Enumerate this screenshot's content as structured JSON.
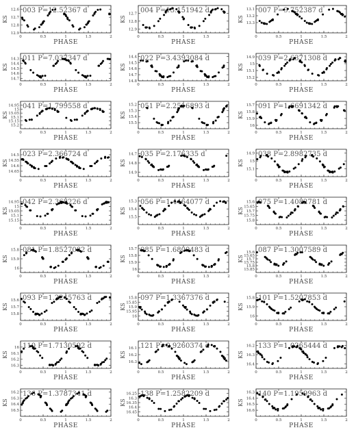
{
  "figure": {
    "background": "#ffffff",
    "point_color": "#000000"
  },
  "chart_data": [
    {
      "type": "scatter",
      "title": "003 P=12.52367 d",
      "xlabel": "PHASE",
      "ylabel": "K_S",
      "xlim": [
        0,
        2
      ],
      "ylim": [
        12.9,
        12.55
      ],
      "yticks": [
        12.6,
        12.7,
        12.8,
        12.9
      ],
      "xticks": [
        0,
        0.5,
        1,
        1.5,
        2
      ],
      "ymin": 12.58,
      "ymax": 12.86,
      "phase_offset": 0.3
    },
    {
      "type": "scatter",
      "title": "004 P=13.151942 d",
      "xlabel": "PHASE",
      "ylabel": "K_S",
      "xlim": [
        0,
        2
      ],
      "ylim": [
        12.95,
        12.6
      ],
      "yticks": [
        12.7,
        12.8,
        12.9
      ],
      "xticks": [
        0,
        0.5,
        1,
        1.5,
        2
      ],
      "ymin": 12.63,
      "ymax": 12.9,
      "phase_offset": 0.25
    },
    {
      "type": "scatter",
      "title": "007 P=9.752387 d",
      "xlabel": "PHASE",
      "ylabel": "K_S",
      "xlim": [
        0,
        2
      ],
      "ylim": [
        13.45,
        13.05
      ],
      "yticks": [
        13.1,
        13.2,
        13.3
      ],
      "xticks": [
        0,
        0.5,
        1,
        1.5,
        2
      ],
      "ymin": 13.1,
      "ymax": 13.32,
      "phase_offset": 0.2
    },
    {
      "type": "scatter",
      "title": "011 P=7.037347 d",
      "xlabel": "PHASE",
      "ylabel": "K_S",
      "xlim": [
        0,
        2
      ],
      "ylim": [
        14.75,
        14.2
      ],
      "yticks": [
        14.3,
        14.4,
        14.5,
        14.6,
        14.7
      ],
      "xticks": [
        0,
        0.5,
        1,
        1.5,
        2
      ],
      "ymin": 14.3,
      "ymax": 14.68,
      "phase_offset": 0.45
    },
    {
      "type": "scatter",
      "title": "022 P=3.4393084 d",
      "xlabel": "PHASE",
      "ylabel": "K_S",
      "xlim": [
        0,
        2
      ],
      "ylim": [
        14.8,
        14.35
      ],
      "yticks": [
        14.4,
        14.5,
        14.6,
        14.7,
        14.8
      ],
      "xticks": [
        0,
        0.5,
        1,
        1.5,
        2
      ],
      "ymin": 14.45,
      "ymax": 14.75,
      "phase_offset": 0.6
    },
    {
      "type": "scatter",
      "title": "039 P=2.6371308 d",
      "xlabel": "PHASE",
      "ylabel": "K_S",
      "xlim": [
        0,
        2
      ],
      "ylim": [
        15.25,
        14.85
      ],
      "yticks": [
        14.9,
        15,
        15.1,
        15.2
      ],
      "xticks": [
        0,
        0.5,
        1,
        1.5,
        2
      ],
      "ymin": 14.92,
      "ymax": 15.18,
      "phase_offset": 0.35
    },
    {
      "type": "scatter",
      "title": "041 P=1.799558 d",
      "xlabel": "PHASE",
      "ylabel": "K_S",
      "xlim": [
        0,
        2
      ],
      "ylim": [
        15.25,
        14.9
      ],
      "yticks": [
        14.95,
        15,
        15.05,
        15.1,
        15.15,
        15.2
      ],
      "xticks": [
        0,
        0.5,
        1,
        1.5,
        2
      ],
      "ymin": 14.98,
      "ymax": 15.15,
      "phase_offset": 0.15
    },
    {
      "type": "scatter",
      "title": "051 P=2.2516893 d",
      "xlabel": "PHASE",
      "ylabel": "K_S",
      "xlim": [
        0,
        2
      ],
      "ylim": [
        15.6,
        15.15
      ],
      "yticks": [
        15.2,
        15.3,
        15.4,
        15.5
      ],
      "xticks": [
        0,
        0.5,
        1,
        1.5,
        2
      ],
      "ymin": 15.2,
      "ymax": 15.55,
      "phase_offset": 0.55
    },
    {
      "type": "scatter",
      "title": "091 P=1.6691342 d",
      "xlabel": "PHASE",
      "ylabel": "K_S",
      "xlim": [
        0,
        2
      ],
      "ylim": [
        16.05,
        15.65
      ],
      "yticks": [
        15.7,
        15.8,
        15.9,
        16
      ],
      "xticks": [
        0,
        0.5,
        1,
        1.5,
        2
      ],
      "ymin": 15.72,
      "ymax": 15.98,
      "phase_offset": 0.3
    },
    {
      "type": "scatter",
      "title": "023 P=2.366724 d",
      "xlabel": "PHASE",
      "ylabel": "K_S",
      "xlim": [
        0,
        2
      ],
      "ylim": [
        14.7,
        14.45
      ],
      "yticks": [
        14.5,
        14.55,
        14.6,
        14.65
      ],
      "xticks": [
        0,
        0.5,
        1,
        1.5,
        2
      ],
      "ymin": 14.52,
      "ymax": 14.63,
      "phase_offset": 0.4
    },
    {
      "type": "scatter",
      "title": "035 P=2.176335 d",
      "xlabel": "PHASE",
      "ylabel": "K_S",
      "xlim": [
        0,
        2
      ],
      "ylim": [
        14.95,
        14.65
      ],
      "yticks": [
        14.7,
        14.8,
        14.9
      ],
      "xticks": [
        0,
        0.5,
        1,
        1.5,
        2
      ],
      "ymin": 14.72,
      "ymax": 14.88,
      "phase_offset": 0.5
    },
    {
      "type": "scatter",
      "title": "038 P=2.8982735 d",
      "xlabel": "PHASE",
      "ylabel": "K_S",
      "xlim": [
        0,
        2
      ],
      "ylim": [
        15.2,
        14.85
      ],
      "yticks": [
        14.9,
        15,
        15.1
      ],
      "xticks": [
        0,
        0.5,
        1,
        1.5,
        2
      ],
      "ymin": 14.92,
      "ymax": 15.15,
      "phase_offset": 0.7
    },
    {
      "type": "scatter",
      "title": "042 P=2.368226 d",
      "xlabel": "PHASE",
      "ylabel": "K_S",
      "xlim": [
        0,
        2
      ],
      "ylim": [
        15.2,
        14.9
      ],
      "yticks": [
        14.95,
        15,
        15.05,
        15.1,
        15.15
      ],
      "xticks": [
        0,
        0.5,
        1,
        1.5,
        2
      ],
      "ymin": 14.95,
      "ymax": 15.12,
      "phase_offset": 0.45
    },
    {
      "type": "scatter",
      "title": "056 P=1.4464077 d",
      "xlabel": "PHASE",
      "ylabel": "K_S",
      "xlim": [
        0,
        2
      ],
      "ylim": [
        15.6,
        15.25
      ],
      "yticks": [
        15.3,
        15.4,
        15.5
      ],
      "xticks": [
        0,
        0.5,
        1,
        1.5,
        2
      ],
      "ymin": 15.3,
      "ymax": 15.5,
      "phase_offset": 0.35
    },
    {
      "type": "scatter",
      "title": "075 P=1.4082781 d",
      "xlabel": "PHASE",
      "ylabel": "K_S",
      "xlim": [
        0,
        2
      ],
      "ylim": [
        15.85,
        15.55
      ],
      "yticks": [
        15.6,
        15.65,
        15.7,
        15.75,
        15.8
      ],
      "xticks": [
        0,
        0.5,
        1,
        1.5,
        2
      ],
      "ymin": 15.6,
      "ymax": 15.78,
      "phase_offset": 0.6
    },
    {
      "type": "scatter",
      "title": "081 P=1.8527082 d",
      "xlabel": "PHASE",
      "ylabel": "K_S",
      "xlim": [
        0,
        2
      ],
      "ylim": [
        16.05,
        15.75
      ],
      "yticks": [
        15.8,
        15.9,
        16
      ],
      "xticks": [
        0,
        0.5,
        1,
        1.5,
        2
      ],
      "ymin": 15.8,
      "ymax": 16.0,
      "phase_offset": 0.75
    },
    {
      "type": "scatter",
      "title": "085 P=1.6800483 d",
      "xlabel": "PHASE",
      "ylabel": "K_S",
      "xlim": [
        0,
        2
      ],
      "ylim": [
        16.05,
        15.65
      ],
      "yticks": [
        15.7,
        15.8,
        15.9,
        16
      ],
      "xticks": [
        0,
        0.5,
        1,
        1.5,
        2
      ],
      "ymin": 15.72,
      "ymax": 15.98,
      "phase_offset": 0.55
    },
    {
      "type": "scatter",
      "title": "087 P=1.3007589 d",
      "xlabel": "PHASE",
      "ylabel": "K_S",
      "xlim": [
        0,
        2
      ],
      "ylim": [
        15.9,
        15.5
      ],
      "yticks": [
        15.6,
        15.65,
        15.7,
        15.75,
        15.8,
        15.85
      ],
      "xticks": [
        0,
        0.5,
        1,
        1.5,
        2
      ],
      "ymin": 15.6,
      "ymax": 15.8,
      "phase_offset": 0.5
    },
    {
      "type": "scatter",
      "title": "093 P=1.2245763 d",
      "xlabel": "PHASE",
      "ylabel": "K_S",
      "xlim": [
        0,
        2
      ],
      "ylim": [
        15.9,
        15.5
      ],
      "yticks": [
        15.6,
        15.7,
        15.8
      ],
      "xticks": [
        0,
        0.5,
        1,
        1.5,
        2
      ],
      "ymin": 15.55,
      "ymax": 15.82,
      "phase_offset": 0.4
    },
    {
      "type": "scatter",
      "title": "097 P=1.3367376 d",
      "xlabel": "PHASE",
      "ylabel": "K_S",
      "xlim": [
        0,
        2
      ],
      "ylim": [
        16.05,
        15.75
      ],
      "yticks": [
        15.8,
        15.85,
        15.9,
        15.95,
        16
      ],
      "xticks": [
        0,
        0.5,
        1,
        1.5,
        2
      ],
      "ymin": 15.82,
      "ymax": 16.0,
      "phase_offset": 0.3
    },
    {
      "type": "scatter",
      "title": "101 P=1.5207853 d",
      "xlabel": "PHASE",
      "ylabel": "K_S",
      "xlim": [
        0,
        2
      ],
      "ylim": [
        16.05,
        15.75
      ],
      "yticks": [
        15.8,
        15.9,
        16
      ],
      "xticks": [
        0,
        0.5,
        1,
        1.5,
        2
      ],
      "ymin": 15.82,
      "ymax": 15.98,
      "phase_offset": 0.55
    },
    {
      "type": "scatter",
      "title": "110 P=1.7130592 d",
      "xlabel": "PHASE",
      "ylabel": "K_S",
      "xlim": [
        0,
        2
      ],
      "ylim": [
        16.35,
        15.9
      ],
      "yticks": [
        16,
        16.1,
        16.2,
        16.3
      ],
      "xticks": [
        0,
        0.5,
        1,
        1.5,
        2
      ],
      "ymin": 15.98,
      "ymax": 16.3,
      "phase_offset": 0.7
    },
    {
      "type": "scatter",
      "title": "121 P=0.9260374 d",
      "xlabel": "PHASE",
      "ylabel": "K_S",
      "xlim": [
        0,
        2
      ],
      "ylim": [
        16.4,
        16.0
      ],
      "yticks": [
        16.1,
        16.2,
        16.3
      ],
      "xticks": [
        0,
        0.5,
        1,
        1.5,
        2
      ],
      "ymin": 16.05,
      "ymax": 16.35,
      "phase_offset": 0.1
    },
    {
      "type": "scatter",
      "title": "133 P=1.0265444 d",
      "xlabel": "PHASE",
      "ylabel": "K_S",
      "xlim": [
        0,
        2
      ],
      "ylim": [
        16.45,
        16.15
      ],
      "yticks": [
        16.2,
        16.3,
        16.4
      ],
      "xticks": [
        0,
        0.5,
        1,
        1.5,
        2
      ],
      "ymin": 16.2,
      "ymax": 16.4,
      "phase_offset": 0.35
    },
    {
      "type": "scatter",
      "title": "136 P=1.3787341 d",
      "xlabel": "PHASE",
      "ylabel": "K_S",
      "xlim": [
        0,
        2
      ],
      "ylim": [
        16.6,
        16.15
      ],
      "yticks": [
        16.2,
        16.3,
        16.4,
        16.5
      ],
      "xticks": [
        0,
        0.5,
        1,
        1.5,
        2
      ],
      "ymin": 16.2,
      "ymax": 16.55,
      "phase_offset": 0.8
    },
    {
      "type": "scatter",
      "title": "138 P=1.2582209 d",
      "xlabel": "PHASE",
      "ylabel": "K_S",
      "xlim": [
        0,
        2
      ],
      "ylim": [
        16.5,
        16.2
      ],
      "yticks": [
        16.25,
        16.3,
        16.35,
        16.4,
        16.45
      ],
      "xticks": [
        0,
        0.5,
        1,
        1.5,
        2
      ],
      "ymin": 16.27,
      "ymax": 16.45,
      "phase_offset": 0.6
    },
    {
      "type": "scatter",
      "title": "140 P=1.1959963 d",
      "xlabel": "PHASE",
      "ylabel": "K_S",
      "xlim": [
        0,
        2
      ],
      "ylim": [
        16.7,
        16.25
      ],
      "yticks": [
        16.3,
        16.4,
        16.5,
        16.6
      ],
      "xticks": [
        0,
        0.5,
        1,
        1.5,
        2
      ],
      "ymin": 16.32,
      "ymax": 16.6,
      "phase_offset": 0.5
    }
  ]
}
